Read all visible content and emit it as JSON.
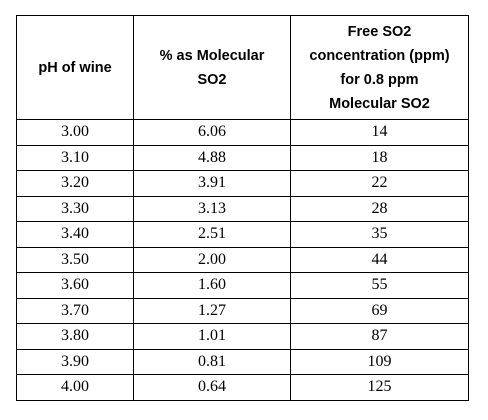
{
  "table": {
    "header": [
      [
        "pH of wine"
      ],
      [
        "% as Molecular",
        "SO2"
      ],
      [
        "Free SO2",
        "concentration (ppm)",
        "for 0.8 ppm",
        "Molecular SO2"
      ]
    ],
    "rows": [
      [
        "3.00",
        "6.06",
        "14"
      ],
      [
        "3.10",
        "4.88",
        "18"
      ],
      [
        "3.20",
        "3.91",
        "22"
      ],
      [
        "3.30",
        "3.13",
        "28"
      ],
      [
        "3.40",
        "2.51",
        "35"
      ],
      [
        "3.50",
        "2.00",
        "44"
      ],
      [
        "3.60",
        "1.60",
        "55"
      ],
      [
        "3.70",
        "1.27",
        "69"
      ],
      [
        "3.80",
        "1.01",
        "87"
      ],
      [
        "3.90",
        "0.81",
        "109"
      ],
      [
        "4.00",
        "0.64",
        "125"
      ]
    ]
  }
}
